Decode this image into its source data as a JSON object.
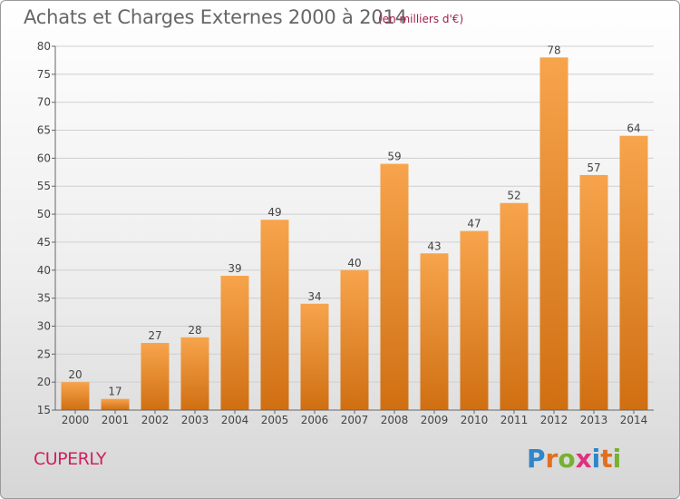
{
  "title": "Achats et Charges Externes 2000 à 2014",
  "subtitle": "(en milliers d'€)",
  "commune": "CUPERLY",
  "logo": {
    "letters": [
      "P",
      "r",
      "o",
      "x",
      "i",
      "t",
      "i"
    ],
    "colors": [
      "#2f86c8",
      "#e07020",
      "#78b030",
      "#e03080",
      "#2f86c8",
      "#e07020",
      "#78b030"
    ]
  },
  "colors": {
    "bar_light": "#f7a44c",
    "bar_dark": "#d06f12",
    "grid": "#cfcfcf",
    "axis": "#666666",
    "label": "#444444"
  },
  "chart_data": {
    "type": "bar",
    "categories": [
      "2000",
      "2001",
      "2002",
      "2003",
      "2004",
      "2005",
      "2006",
      "2007",
      "2008",
      "2009",
      "2010",
      "2011",
      "2012",
      "2013",
      "2014"
    ],
    "values": [
      20,
      17,
      27,
      28,
      39,
      49,
      34,
      40,
      59,
      43,
      47,
      52,
      78,
      57,
      64
    ],
    "title": "Achats et Charges Externes 2000 à 2014",
    "xlabel": "",
    "ylabel": "",
    "ylim": [
      15,
      80
    ],
    "yticks": [
      15,
      20,
      25,
      30,
      35,
      40,
      45,
      50,
      55,
      60,
      65,
      70,
      75,
      80
    ],
    "grid": true
  }
}
